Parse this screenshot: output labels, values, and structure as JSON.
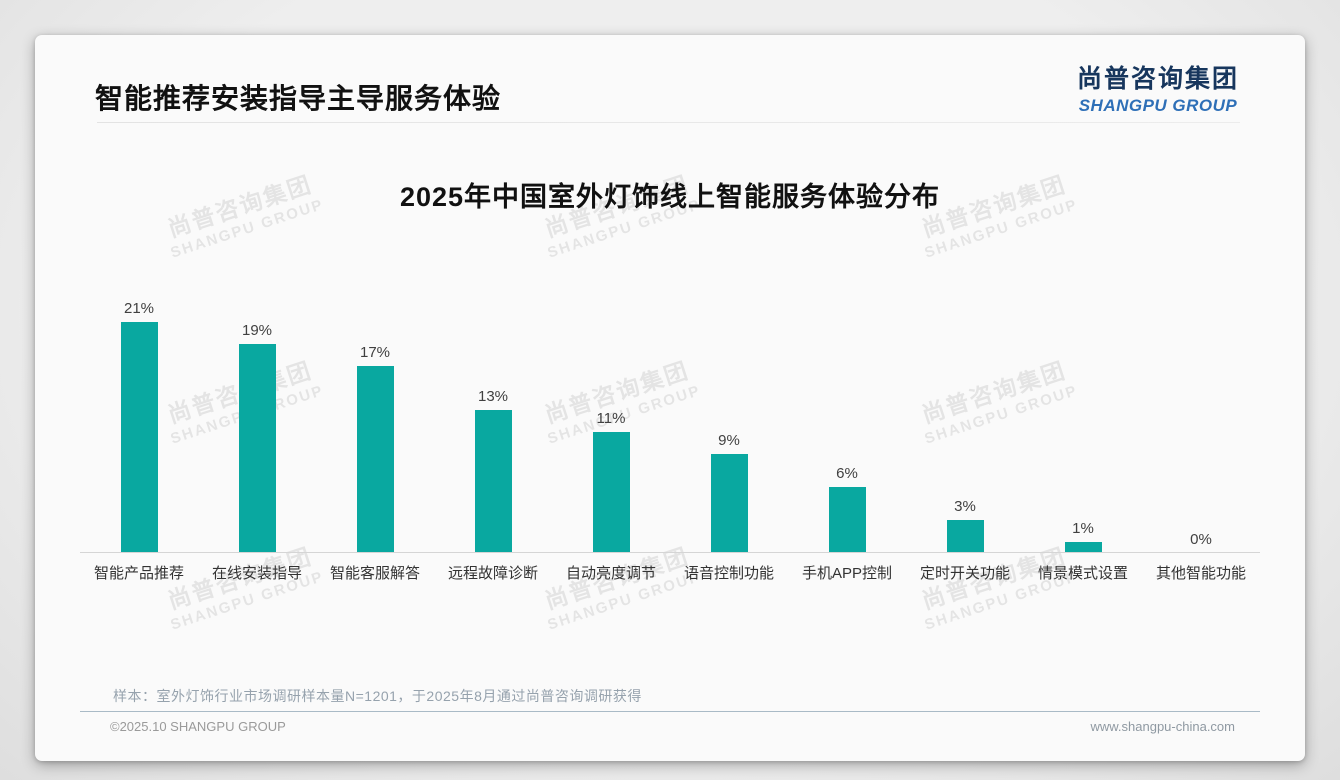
{
  "header": {
    "title": "智能推荐安装指导主导服务体验"
  },
  "logo": {
    "chinese": "尚普咨询集团",
    "english": "SHANGPU GROUP"
  },
  "watermark": {
    "line1": "尚普咨询集团",
    "line2": "SHANGPU GROUP"
  },
  "colors": {
    "bar": "#09a8a0",
    "logo_chinese": "#17365d",
    "logo_english": "#2e6fb7",
    "axis_line": "#d5d5d5"
  },
  "chart_data": {
    "type": "bar",
    "title": "2025年中国室外灯饰线上智能服务体验分布",
    "categories": [
      "智能产品推荐",
      "在线安装指导",
      "智能客服解答",
      "远程故障诊断",
      "自动亮度调节",
      "语音控制功能",
      "手机APP控制",
      "定时开关功能",
      "情景模式设置",
      "其他智能功能"
    ],
    "values": [
      21,
      19,
      17,
      13,
      11,
      9,
      6,
      3,
      1,
      0
    ],
    "value_labels": [
      "21%",
      "19%",
      "17%",
      "13%",
      "11%",
      "9%",
      "6%",
      "3%",
      "1%",
      "0%"
    ],
    "unit": "%",
    "xlabel": "",
    "ylabel": "",
    "ylim": [
      0,
      25
    ],
    "grid": false,
    "legend": false,
    "bar_color": "#09a8a0"
  },
  "footer": {
    "sample_note": "样本：室外灯饰行业市场调研样本量N=1201，于2025年8月通过尚普咨询调研获得",
    "copyright": "©2025.10 SHANGPU GROUP",
    "website": "www.shangpu-china.com"
  }
}
